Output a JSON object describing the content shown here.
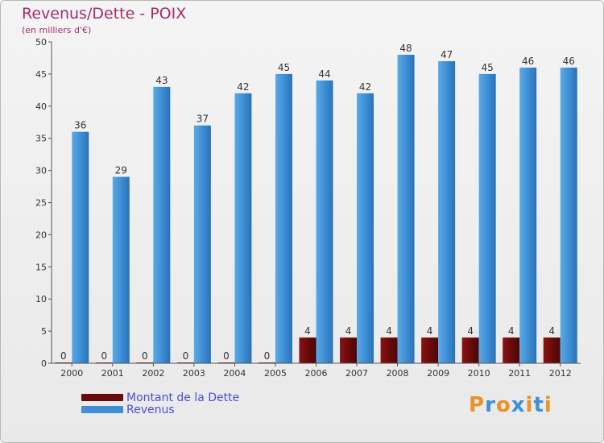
{
  "header": {
    "title": "Revenus/Dette - POIX",
    "subtitle": "(en milliers d'€)"
  },
  "legend": {
    "items": [
      {
        "label": "Montant de la Dette",
        "color": "#6b0a0a"
      },
      {
        "label": "Revenus",
        "color": "#3e8fd6"
      }
    ]
  },
  "logo": {
    "text": "Proxiti",
    "colors": [
      "#e8922a",
      "#3e8fd6",
      "#e8922a",
      "#3e8fd6",
      "#e8922a",
      "#3e8fd6",
      "#e8922a"
    ]
  },
  "chart_data": {
    "type": "bar",
    "title": "Revenus/Dette - POIX",
    "subtitle": "(en milliers d'€)",
    "categories": [
      "2000",
      "2001",
      "2002",
      "2003",
      "2004",
      "2005",
      "2006",
      "2007",
      "2008",
      "2009",
      "2010",
      "2011",
      "2012"
    ],
    "series": [
      {
        "name": "Montant de la Dette",
        "color": "#6b0a0a",
        "values": [
          0,
          0,
          0,
          0,
          0,
          0,
          4,
          4,
          4,
          4,
          4,
          4,
          4
        ]
      },
      {
        "name": "Revenus",
        "color": "#3e8fd6",
        "values": [
          36,
          29,
          43,
          37,
          42,
          45,
          44,
          42,
          48,
          47,
          45,
          46,
          46
        ]
      }
    ],
    "ylim": [
      0,
      50
    ],
    "yticks": [
      0,
      5,
      10,
      15,
      20,
      25,
      30,
      35,
      40,
      45,
      50
    ],
    "grid": false,
    "legend_position": "bottom-left"
  }
}
